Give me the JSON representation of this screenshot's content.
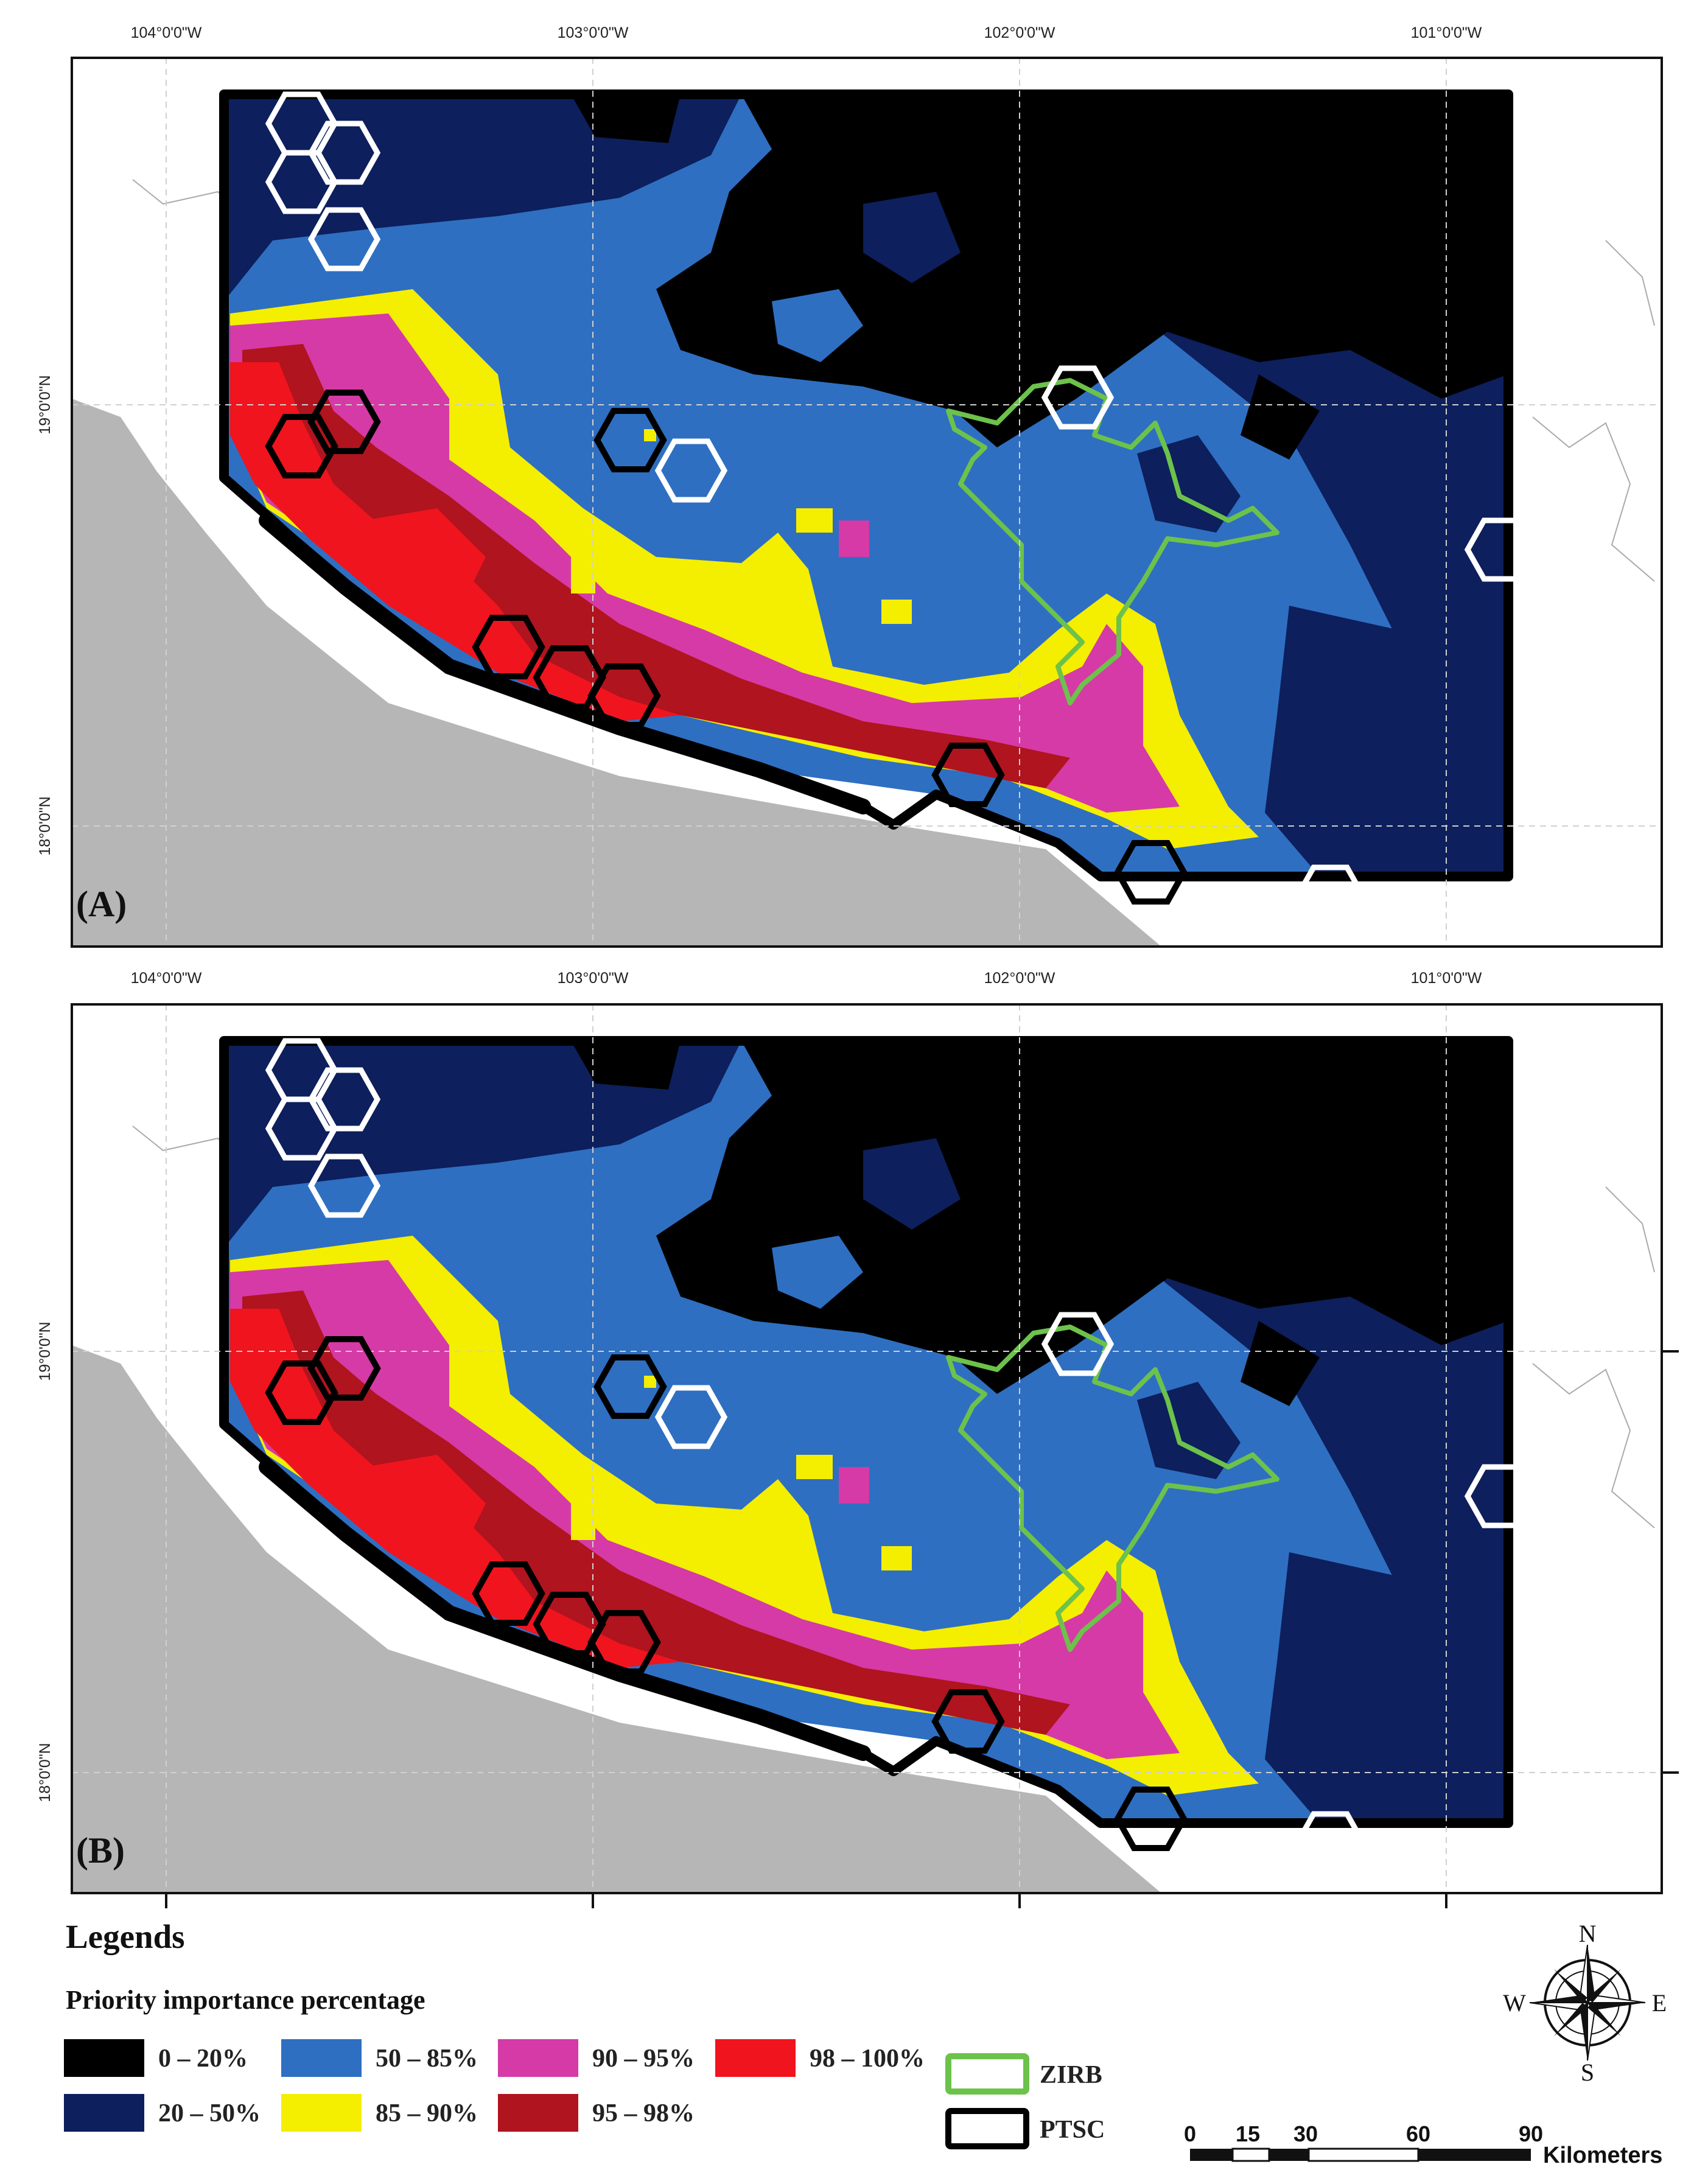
{
  "map": {
    "longitude_labels": [
      "104°0'0\"W",
      "103°0'0\"W",
      "102°0'0\"W",
      "101°0'0\"W"
    ],
    "latitude_labels": [
      "19°0'0\"N",
      "18°0'0\"N"
    ],
    "panels": [
      {
        "label": "(A)"
      },
      {
        "label": "(B)"
      }
    ]
  },
  "legend": {
    "title": "Legends",
    "subtitle": "Priority importance percentage",
    "classes": [
      {
        "label": "0 – 20%",
        "color": "#000000"
      },
      {
        "label": "20 – 50%",
        "color": "#0d1f5c"
      },
      {
        "label": "50 – 85%",
        "color": "#2e6fc2"
      },
      {
        "label": "85 – 90%",
        "color": "#f4ee00"
      },
      {
        "label": "90 – 95%",
        "color": "#d63aa6"
      },
      {
        "label": "95 – 98%",
        "color": "#b0141e"
      },
      {
        "label": "98 – 100%",
        "color": "#f0141e"
      }
    ],
    "boundaries": [
      {
        "label": "ZIRB",
        "color": "#6cc24a"
      },
      {
        "label": "PTSC",
        "color": "#000000"
      }
    ]
  },
  "scale_bar": {
    "ticks": [
      "0",
      "15",
      "30",
      "60",
      "90"
    ],
    "unit": "Kilometers"
  },
  "compass": {
    "north": "N",
    "south": "S",
    "east": "E",
    "west": "W"
  }
}
